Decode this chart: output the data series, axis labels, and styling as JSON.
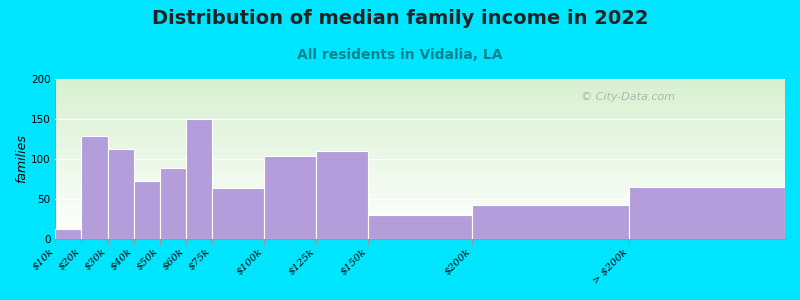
{
  "title": "Distribution of median family income in 2022",
  "subtitle": "All residents in Vidalia, LA",
  "ylabel": "families",
  "categories": [
    "$10k",
    "$20k",
    "$30k",
    "$40k",
    "$50k",
    "$60k",
    "$75k",
    "$100k",
    "$125k",
    "$150k",
    "$200k",
    "> $200k"
  ],
  "values": [
    12,
    128,
    112,
    72,
    88,
    150,
    63,
    103,
    110,
    30,
    42,
    65
  ],
  "left_edges": [
    0,
    1,
    2,
    3,
    4,
    5,
    6,
    8,
    10,
    12,
    16,
    22
  ],
  "widths": [
    1,
    1,
    1,
    1,
    1,
    1,
    2,
    2,
    2,
    4,
    6,
    6
  ],
  "bar_color": "#b39ddb",
  "bar_edge_color": "#ffffff",
  "background_color": "#00e5ff",
  "plot_bg_top_color": "#d7f0d0",
  "plot_bg_bottom_color": "#ffffff",
  "title_fontsize": 14,
  "subtitle_fontsize": 10,
  "subtitle_color": "#00838f",
  "ylabel_fontsize": 9,
  "tick_fontsize": 7.5,
  "ylim": [
    0,
    200
  ],
  "yticks": [
    0,
    50,
    100,
    150,
    200
  ],
  "watermark": "© City-Data.com",
  "watermark_color": "#aaaaaa"
}
